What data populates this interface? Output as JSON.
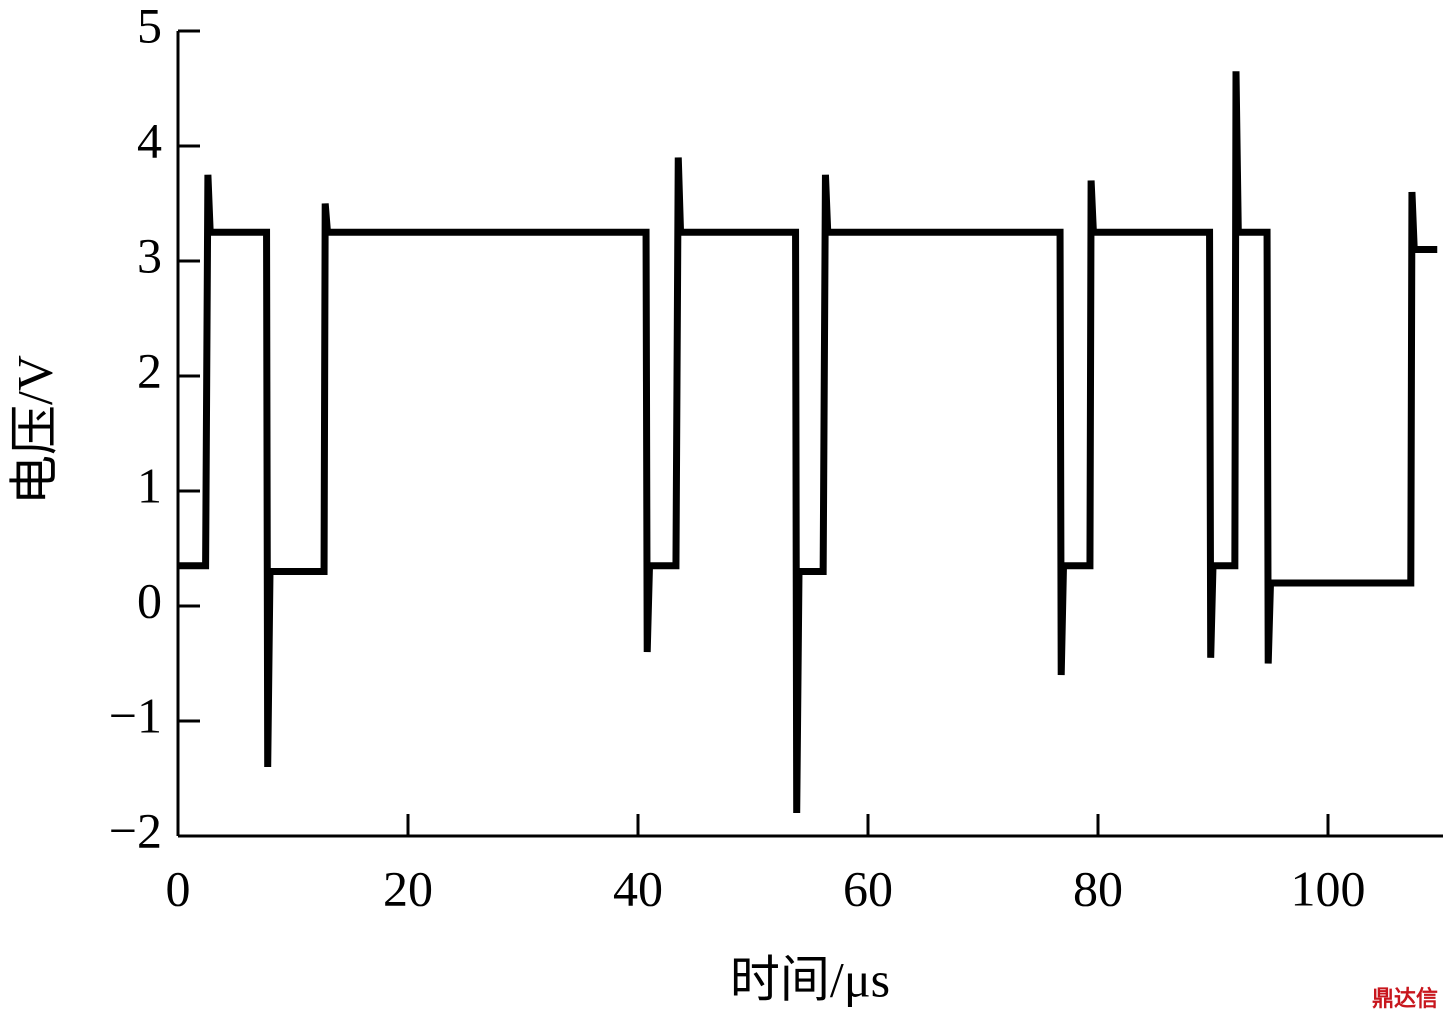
{
  "chart_data": {
    "type": "line",
    "x_label": "时间/μs",
    "y_label": "电压/V",
    "watermark": "鼎达信",
    "xlim": [
      0,
      110
    ],
    "ylim": [
      -2,
      5
    ],
    "xticks": [
      0,
      20,
      40,
      60,
      80,
      100
    ],
    "yticks": [
      {
        "value": -2,
        "label": "−2"
      },
      {
        "value": -1,
        "label": "−1"
      },
      0,
      1,
      2,
      3,
      4,
      5
    ],
    "grid": false,
    "series": [
      {
        "color": "#000000",
        "x": [
          0,
          2.4,
          2.6,
          2.8,
          7.7,
          7.8,
          8.0,
          12.7,
          12.8,
          13.0,
          40.7,
          40.8,
          41.0,
          43.3,
          43.5,
          43.7,
          53.7,
          53.8,
          54.0,
          56.1,
          56.3,
          56.5,
          76.7,
          76.8,
          77.0,
          79.3,
          79.4,
          79.6,
          89.7,
          89.8,
          90.0,
          91.9,
          92.0,
          92.2,
          94.7,
          94.8,
          95.0,
          107.2,
          107.3,
          107.5,
          109.5
        ],
        "values": [
          0.35,
          0.35,
          3.75,
          3.25,
          3.25,
          -1.4,
          0.3,
          0.3,
          3.5,
          3.25,
          3.25,
          -0.4,
          0.35,
          0.35,
          3.9,
          3.25,
          3.25,
          -1.8,
          0.3,
          0.3,
          3.75,
          3.25,
          3.25,
          -0.6,
          0.35,
          0.35,
          3.7,
          3.25,
          3.25,
          -0.45,
          0.35,
          0.35,
          4.65,
          3.25,
          3.25,
          -0.5,
          0.2,
          0.2,
          3.6,
          3.1,
          3.1
        ]
      }
    ]
  }
}
